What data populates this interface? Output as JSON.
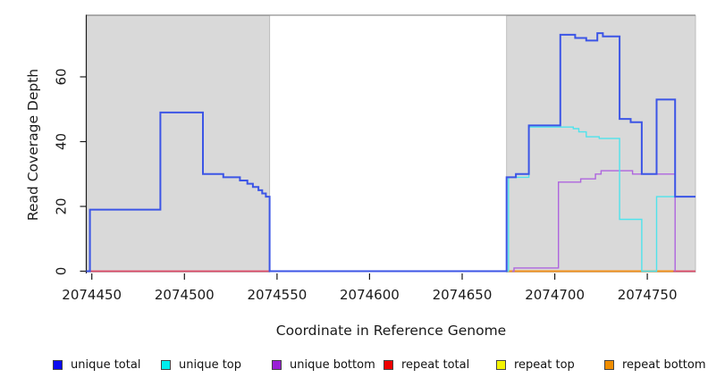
{
  "chart_data": {
    "type": "line",
    "subtype": "step-coverage-plot",
    "title": "",
    "xlabel": "Coordinate in Reference Genome",
    "ylabel": "Read Coverage Depth",
    "x_domain": [
      2074447,
      2074776
    ],
    "y_domain": [
      0,
      79
    ],
    "x_ticks": [
      2074450,
      2074500,
      2074550,
      2074600,
      2074650,
      2074700,
      2074750
    ],
    "y_ticks": [
      0,
      20,
      40,
      60
    ],
    "grid": false,
    "background_color": "#ffffff",
    "shaded_region_color": "#d9d9d9",
    "shaded_region_border": "#bdbdbd",
    "shaded_regions": [
      {
        "x0": 2074447,
        "x1": 2074546
      },
      {
        "x0": 2074674,
        "x1": 2074776
      }
    ],
    "series": [
      {
        "name": "repeat-top",
        "label": "repeat top",
        "color": "#f2ee2e",
        "width": 1.4,
        "points": [
          [
            2074674,
            0
          ]
        ],
        "end": 2074764
      },
      {
        "name": "repeat-total",
        "label": "repeat total",
        "color": "#e04b69",
        "width": 1.7,
        "points": [
          [
            2074447,
            0
          ]
        ],
        "end": 2074776
      },
      {
        "name": "repeat-bottom",
        "label": "repeat bottom",
        "color": "#f5941e",
        "width": 2,
        "points": [
          [
            2074674,
            0
          ]
        ],
        "end": 2074764
      },
      {
        "name": "unique-bottom",
        "label": "unique bottom",
        "color": "#ae65de",
        "width": 1.4,
        "points": [
          [
            2074677,
            0
          ],
          [
            2074678,
            1
          ],
          [
            2074702,
            27.5
          ],
          [
            2074714,
            28.5
          ],
          [
            2074722,
            30
          ],
          [
            2074725,
            31
          ],
          [
            2074742,
            30
          ],
          [
            2074765,
            0
          ]
        ],
        "end": 2074765
      },
      {
        "name": "unique-top",
        "label": "unique top",
        "color": "#4fe3ec",
        "width": 1.4,
        "points": [
          [
            2074674,
            0
          ],
          [
            2074675,
            29
          ],
          [
            2074686,
            44.5
          ],
          [
            2074710,
            44
          ],
          [
            2074713,
            43
          ],
          [
            2074717,
            41.5
          ],
          [
            2074724,
            41
          ],
          [
            2074735,
            16
          ],
          [
            2074747,
            0
          ],
          [
            2074755,
            23
          ]
        ],
        "end": 2074776
      },
      {
        "name": "unique-total",
        "label": "unique total",
        "color": "#3c55e6",
        "width": 2,
        "points": [
          [
            2074447,
            0
          ],
          [
            2074449,
            19
          ],
          [
            2074487,
            49
          ],
          [
            2074510,
            30
          ],
          [
            2074521,
            29
          ],
          [
            2074530,
            28
          ],
          [
            2074534,
            27
          ],
          [
            2074537,
            26
          ],
          [
            2074540,
            25
          ],
          [
            2074542,
            24
          ],
          [
            2074544,
            23
          ],
          [
            2074546,
            0
          ],
          [
            2074674,
            29
          ],
          [
            2074679,
            30
          ],
          [
            2074686,
            45
          ],
          [
            2074703,
            73
          ],
          [
            2074711,
            72
          ],
          [
            2074717,
            71.2
          ],
          [
            2074723,
            73.5
          ],
          [
            2074726,
            72.5
          ],
          [
            2074735,
            47
          ],
          [
            2074741,
            46
          ],
          [
            2074747,
            30
          ],
          [
            2074755,
            53
          ],
          [
            2074765,
            23
          ]
        ],
        "end": 2074776
      }
    ],
    "legend_position": "bottom",
    "legend": [
      {
        "label": "unique total",
        "color": "#0a0af0"
      },
      {
        "label": "unique top",
        "color": "#00eeee"
      },
      {
        "label": "unique bottom",
        "color": "#9a1fd6"
      },
      {
        "label": "repeat total",
        "color": "#ee0000"
      },
      {
        "label": "repeat top",
        "color": "#f4f400"
      },
      {
        "label": "repeat bottom",
        "color": "#f08d00"
      }
    ]
  }
}
